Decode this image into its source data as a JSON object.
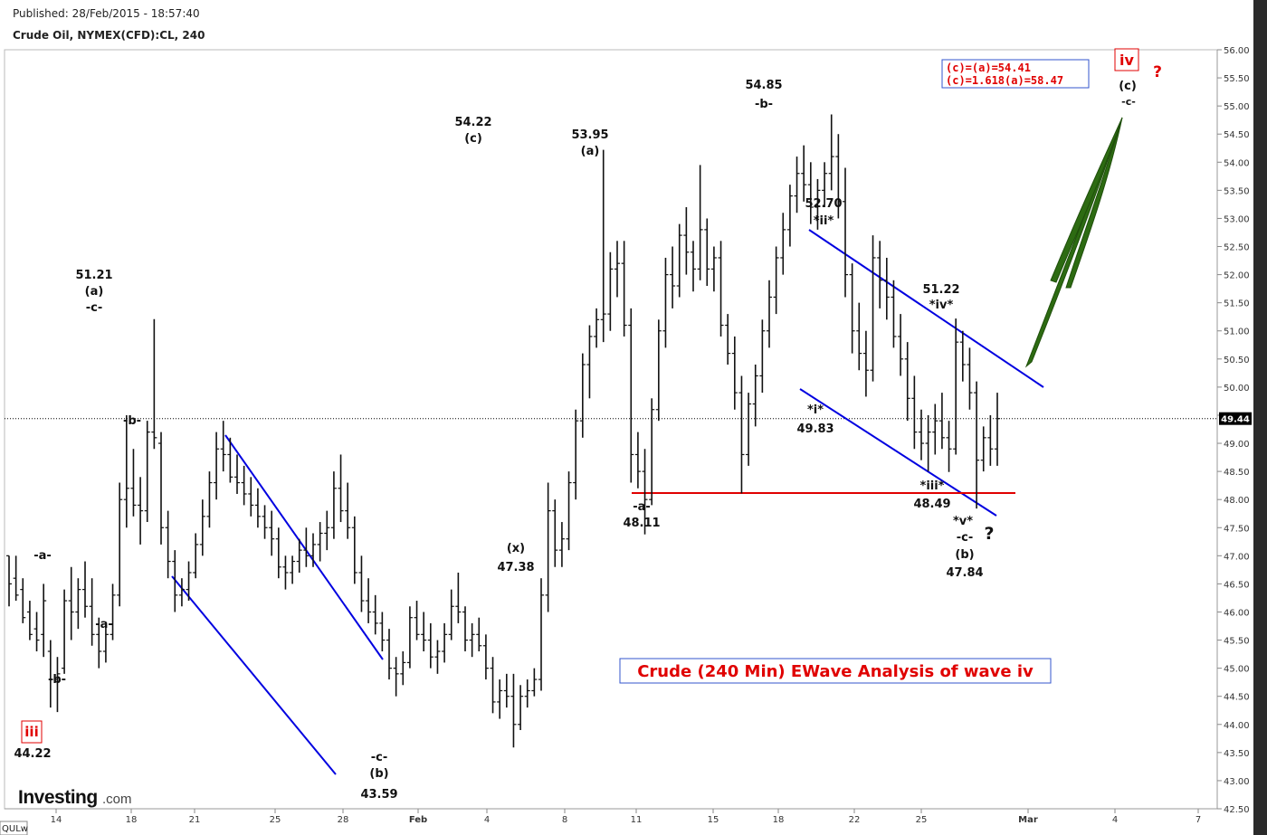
{
  "header": {
    "published": "Published: 28/Feb/2015 - 18:57:40",
    "symbol": "Crude Oil, NYMEX(CFD):CL, 240"
  },
  "logo": {
    "brand": "Investing",
    "suffix": ".com"
  },
  "corner_text": "QULw",
  "colors": {
    "bar": "#111111",
    "channel": "#0000e0",
    "support": "#e00000",
    "projection": "#2d6b12",
    "annotation_red": "#e00000",
    "price_badge_bg": "#000000"
  },
  "chart_data": {
    "type": "ohlc",
    "title": "Crude (240 Min) EWave Analysis of wave iv",
    "ylim": [
      42.5,
      56.0
    ],
    "y_ticks": [
      "42.50",
      "43.00",
      "43.50",
      "44.00",
      "44.50",
      "45.00",
      "45.50",
      "46.00",
      "46.50",
      "47.00",
      "47.50",
      "48.00",
      "48.50",
      "49.00",
      "49.50",
      "50.00",
      "50.50",
      "51.00",
      "51.50",
      "52.00",
      "52.50",
      "53.00",
      "53.50",
      "54.00",
      "54.50",
      "55.00",
      "55.50",
      "56.00"
    ],
    "x_ticks": [
      "14",
      "18",
      "21",
      "25",
      "28",
      "Feb",
      "4",
      "8",
      "11",
      "15",
      "18",
      "22",
      "25",
      "Mar",
      "4",
      "7"
    ],
    "last_price": "49.44",
    "legend_box": [
      "(c)=(a)=54.41",
      "(c)=1.618(a)=58.47"
    ],
    "wave_labels": [
      {
        "lines": [
          "iii",
          "44.22"
        ],
        "boxed_first": true
      },
      {
        "lines": [
          "-a-"
        ]
      },
      {
        "lines": [
          "-b-"
        ]
      },
      {
        "lines": [
          "51.21",
          "(a)",
          "-c-"
        ]
      },
      {
        "lines": [
          "-a-"
        ]
      },
      {
        "lines": [
          "-b-"
        ]
      },
      {
        "lines": [
          "-c-",
          "(b)",
          "43.59"
        ]
      },
      {
        "lines": [
          "54.22",
          "(c)"
        ]
      },
      {
        "lines": [
          "(x)",
          "47.38"
        ]
      },
      {
        "lines": [
          "53.95",
          "(a)"
        ]
      },
      {
        "lines": [
          "-a-",
          "48.11"
        ]
      },
      {
        "lines": [
          "54.85",
          "-b-"
        ]
      },
      {
        "lines": [
          "52.70",
          "*ii*"
        ]
      },
      {
        "lines": [
          "*i*",
          "49.83"
        ]
      },
      {
        "lines": [
          "51.22",
          "*iv*"
        ]
      },
      {
        "lines": [
          "*iii*",
          "48.49"
        ]
      },
      {
        "lines": [
          "*v*",
          "-c-",
          "(b)",
          "47.84"
        ]
      },
      {
        "lines": [
          "?"
        ]
      },
      {
        "lines": [
          "iv"
        ],
        "boxed_first": true
      },
      {
        "lines": [
          "?"
        ]
      },
      {
        "lines": [
          "(c)",
          "-c-"
        ]
      }
    ],
    "ohlc": [
      [
        47.0,
        47.0,
        46.1,
        46.5
      ],
      [
        46.6,
        47.0,
        46.2,
        46.3
      ],
      [
        46.4,
        46.6,
        45.8,
        45.9
      ],
      [
        46.0,
        46.2,
        45.5,
        45.6
      ],
      [
        45.7,
        46.0,
        45.3,
        45.5
      ],
      [
        45.6,
        46.5,
        45.2,
        46.2
      ],
      [
        45.3,
        45.5,
        44.3,
        44.8
      ],
      [
        44.8,
        45.2,
        44.22,
        44.9
      ],
      [
        45.0,
        46.4,
        44.9,
        46.2
      ],
      [
        46.2,
        46.8,
        45.5,
        46.0
      ],
      [
        46.0,
        46.6,
        45.7,
        46.4
      ],
      [
        46.4,
        46.9,
        45.9,
        46.1
      ],
      [
        46.1,
        46.6,
        45.4,
        45.6
      ],
      [
        45.6,
        45.9,
        45.0,
        45.3
      ],
      [
        45.3,
        45.8,
        45.1,
        45.6
      ],
      [
        45.6,
        46.5,
        45.5,
        46.3
      ],
      [
        46.3,
        48.3,
        46.1,
        48.0
      ],
      [
        48.0,
        49.5,
        47.5,
        48.2
      ],
      [
        48.2,
        48.9,
        47.7,
        47.9
      ],
      [
        47.9,
        48.4,
        47.2,
        47.8
      ],
      [
        47.8,
        49.4,
        47.6,
        49.2
      ],
      [
        49.2,
        51.21,
        48.9,
        49.1
      ],
      [
        49.0,
        49.2,
        47.2,
        47.5
      ],
      [
        47.5,
        47.8,
        46.6,
        46.9
      ],
      [
        46.9,
        47.1,
        46.0,
        46.3
      ],
      [
        46.3,
        46.6,
        46.1,
        46.4
      ],
      [
        46.4,
        46.9,
        46.2,
        46.7
      ],
      [
        46.7,
        47.4,
        46.6,
        47.2
      ],
      [
        47.2,
        48.0,
        47.0,
        47.7
      ],
      [
        47.7,
        48.5,
        47.5,
        48.3
      ],
      [
        48.3,
        49.2,
        48.0,
        48.9
      ],
      [
        48.9,
        49.4,
        48.5,
        48.8
      ],
      [
        48.8,
        49.1,
        48.3,
        48.4
      ],
      [
        48.4,
        48.8,
        48.1,
        48.3
      ],
      [
        48.3,
        48.6,
        47.9,
        48.1
      ],
      [
        48.1,
        48.4,
        47.7,
        47.9
      ],
      [
        47.9,
        48.2,
        47.5,
        47.7
      ],
      [
        47.7,
        47.9,
        47.3,
        47.5
      ],
      [
        47.5,
        47.8,
        47.0,
        47.3
      ],
      [
        47.3,
        47.5,
        46.6,
        46.8
      ],
      [
        46.8,
        47.0,
        46.4,
        46.7
      ],
      [
        46.7,
        47.0,
        46.5,
        46.9
      ],
      [
        46.9,
        47.3,
        46.7,
        47.1
      ],
      [
        47.1,
        47.5,
        46.8,
        47.0
      ],
      [
        47.0,
        47.4,
        46.8,
        47.2
      ],
      [
        47.2,
        47.6,
        46.9,
        47.4
      ],
      [
        47.4,
        47.8,
        47.1,
        47.5
      ],
      [
        47.5,
        48.5,
        47.3,
        48.2
      ],
      [
        48.2,
        48.8,
        47.6,
        47.8
      ],
      [
        47.8,
        48.3,
        47.3,
        47.5
      ],
      [
        47.5,
        47.7,
        46.5,
        46.7
      ],
      [
        46.7,
        47.0,
        46.0,
        46.2
      ],
      [
        46.2,
        46.6,
        45.8,
        46.0
      ],
      [
        46.0,
        46.3,
        45.6,
        45.8
      ],
      [
        45.8,
        46.0,
        45.3,
        45.5
      ],
      [
        45.5,
        45.7,
        44.8,
        45.0
      ],
      [
        45.0,
        45.2,
        44.5,
        44.9
      ],
      [
        44.9,
        45.3,
        44.7,
        45.1
      ],
      [
        45.1,
        46.1,
        45.0,
        45.9
      ],
      [
        45.9,
        46.2,
        45.5,
        45.6
      ],
      [
        45.6,
        46.0,
        45.3,
        45.5
      ],
      [
        45.5,
        45.8,
        45.0,
        45.2
      ],
      [
        45.2,
        45.5,
        44.9,
        45.3
      ],
      [
        45.3,
        45.8,
        45.1,
        45.6
      ],
      [
        45.6,
        46.4,
        45.5,
        46.1
      ],
      [
        46.1,
        46.7,
        45.8,
        46.0
      ],
      [
        46.0,
        46.1,
        45.3,
        45.5
      ],
      [
        45.5,
        45.8,
        45.2,
        45.6
      ],
      [
        45.6,
        45.9,
        45.3,
        45.4
      ],
      [
        45.4,
        45.6,
        44.8,
        45.0
      ],
      [
        45.0,
        45.2,
        44.2,
        44.4
      ],
      [
        44.4,
        44.8,
        44.1,
        44.6
      ],
      [
        44.6,
        44.9,
        44.3,
        44.5
      ],
      [
        44.5,
        44.9,
        43.59,
        44.0
      ],
      [
        44.0,
        44.7,
        43.9,
        44.5
      ],
      [
        44.5,
        44.8,
        44.3,
        44.6
      ],
      [
        44.6,
        45.0,
        44.5,
        44.8
      ],
      [
        44.8,
        46.6,
        44.6,
        46.3
      ],
      [
        46.3,
        48.3,
        46.0,
        47.8
      ],
      [
        47.8,
        48.0,
        46.8,
        47.1
      ],
      [
        47.1,
        47.6,
        46.8,
        47.3
      ],
      [
        47.3,
        48.5,
        47.1,
        48.3
      ],
      [
        48.3,
        49.6,
        48.0,
        49.4
      ],
      [
        49.4,
        50.6,
        49.1,
        50.4
      ],
      [
        50.4,
        51.1,
        49.8,
        50.9
      ],
      [
        50.9,
        51.4,
        50.7,
        51.2
      ],
      [
        51.2,
        54.22,
        50.8,
        51.3
      ],
      [
        51.3,
        52.4,
        51.0,
        52.1
      ],
      [
        52.1,
        52.6,
        51.6,
        52.2
      ],
      [
        52.2,
        52.6,
        50.9,
        51.1
      ],
      [
        51.1,
        51.4,
        48.3,
        48.8
      ],
      [
        48.8,
        49.2,
        48.2,
        48.5
      ],
      [
        48.5,
        48.9,
        47.38,
        48.0
      ],
      [
        48.0,
        49.8,
        47.9,
        49.6
      ],
      [
        49.6,
        51.2,
        49.4,
        51.0
      ],
      [
        51.0,
        52.3,
        50.7,
        52.0
      ],
      [
        52.0,
        52.5,
        51.4,
        51.8
      ],
      [
        51.8,
        52.9,
        51.6,
        52.7
      ],
      [
        52.7,
        53.2,
        52.0,
        52.4
      ],
      [
        52.4,
        52.6,
        51.7,
        52.1
      ],
      [
        52.1,
        53.95,
        51.9,
        52.8
      ],
      [
        52.8,
        53.0,
        51.8,
        52.1
      ],
      [
        52.1,
        52.5,
        51.7,
        52.3
      ],
      [
        52.3,
        52.6,
        50.9,
        51.1
      ],
      [
        51.1,
        51.3,
        50.4,
        50.6
      ],
      [
        50.6,
        50.9,
        49.6,
        49.9
      ],
      [
        49.9,
        50.2,
        48.11,
        48.8
      ],
      [
        48.8,
        49.9,
        48.6,
        49.7
      ],
      [
        49.7,
        50.4,
        49.3,
        50.2
      ],
      [
        50.2,
        51.2,
        49.9,
        51.0
      ],
      [
        51.0,
        51.9,
        50.7,
        51.6
      ],
      [
        51.6,
        52.5,
        51.3,
        52.3
      ],
      [
        52.3,
        53.1,
        52.0,
        52.8
      ],
      [
        52.8,
        53.6,
        52.5,
        53.4
      ],
      [
        53.4,
        54.1,
        53.1,
        53.8
      ],
      [
        53.8,
        54.3,
        53.3,
        53.6
      ],
      [
        53.6,
        54.0,
        52.9,
        53.2
      ],
      [
        53.2,
        53.7,
        52.8,
        53.5
      ],
      [
        53.5,
        54.0,
        53.2,
        53.8
      ],
      [
        53.8,
        54.85,
        53.5,
        54.1
      ],
      [
        54.1,
        54.5,
        53.0,
        53.3
      ],
      [
        53.3,
        53.9,
        51.6,
        52.0
      ],
      [
        52.0,
        52.2,
        50.6,
        51.0
      ],
      [
        51.0,
        51.5,
        50.3,
        50.6
      ],
      [
        50.6,
        51.0,
        49.83,
        50.3
      ],
      [
        50.3,
        52.7,
        50.1,
        52.3
      ],
      [
        52.3,
        52.6,
        51.4,
        51.9
      ],
      [
        51.9,
        52.3,
        51.2,
        51.6
      ],
      [
        51.6,
        51.9,
        50.7,
        50.9
      ],
      [
        50.9,
        51.3,
        50.2,
        50.5
      ],
      [
        50.5,
        50.8,
        49.4,
        49.8
      ],
      [
        49.8,
        50.2,
        48.9,
        49.2
      ],
      [
        49.2,
        49.6,
        48.7,
        49.0
      ],
      [
        49.0,
        49.5,
        48.5,
        49.2
      ],
      [
        49.2,
        49.7,
        48.8,
        49.4
      ],
      [
        49.4,
        49.9,
        48.9,
        49.1
      ],
      [
        49.1,
        49.4,
        48.49,
        48.9
      ],
      [
        48.9,
        51.22,
        48.8,
        50.8
      ],
      [
        50.8,
        51.0,
        50.1,
        50.4
      ],
      [
        50.4,
        50.7,
        49.6,
        49.9
      ],
      [
        49.9,
        50.1,
        47.84,
        48.7
      ],
      [
        48.7,
        49.3,
        48.5,
        49.1
      ],
      [
        49.1,
        49.5,
        48.6,
        48.9
      ],
      [
        48.9,
        49.9,
        48.6,
        49.44
      ]
    ]
  }
}
